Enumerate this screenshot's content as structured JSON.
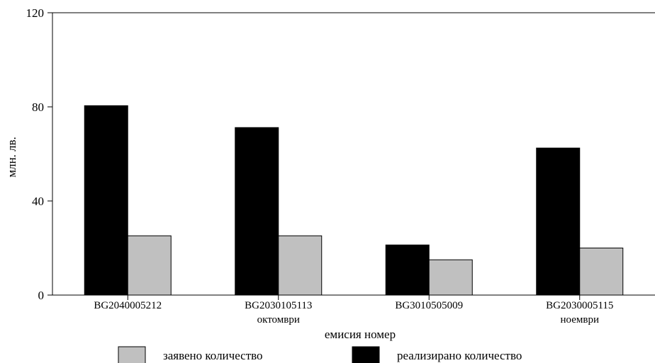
{
  "chart_data": {
    "type": "bar",
    "categories": [
      [
        "BG2040005212"
      ],
      [
        "BG2030105113",
        "октомври"
      ],
      [
        "BG3010505009"
      ],
      [
        "BG2030005115",
        "ноември"
      ]
    ],
    "series": [
      {
        "name": "реализирано количество",
        "color": "#000000",
        "values": [
          80.5,
          71.2,
          21.3,
          62.5
        ]
      },
      {
        "name": "заявено количество",
        "color": "#c0c0c0",
        "values": [
          25.2,
          25.2,
          15.0,
          20.0
        ]
      }
    ],
    "legend_order": [
      1,
      0
    ],
    "xlabel": "емисия номер",
    "ylabel": "млн. лв.",
    "yticks": [
      "0",
      "40",
      "80",
      "120"
    ],
    "ylim": [
      0,
      120
    ],
    "legend_position": "bottom",
    "grid": false
  }
}
